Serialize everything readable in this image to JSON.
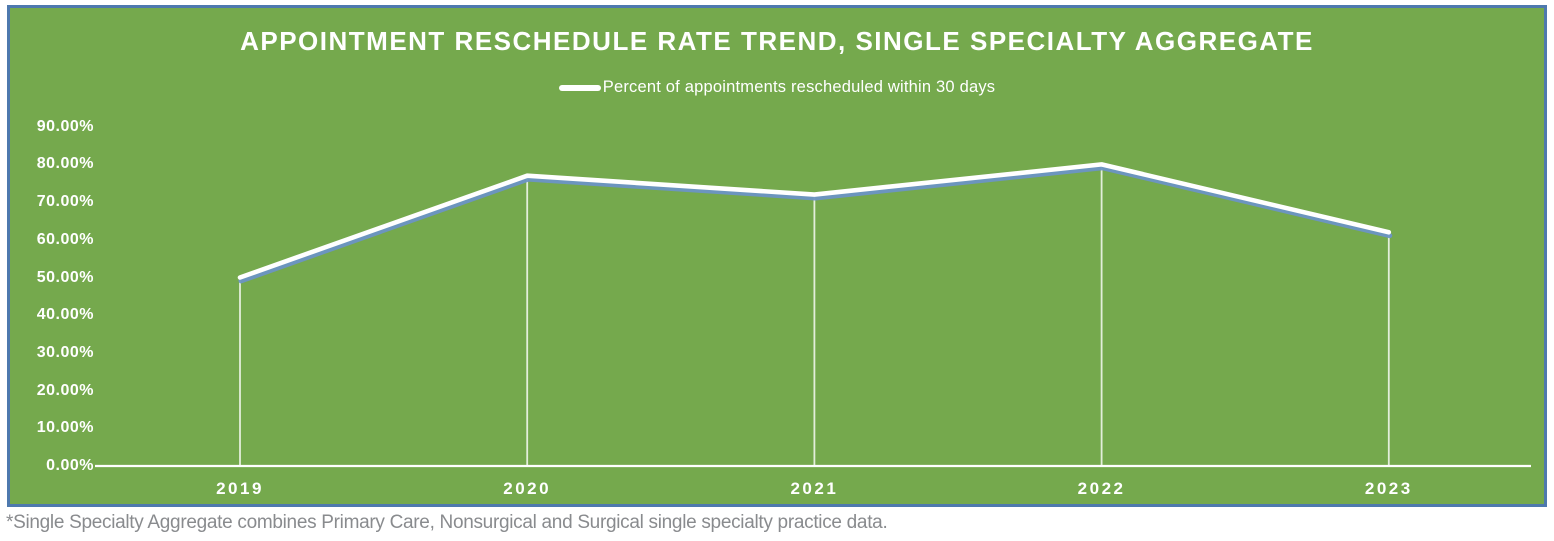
{
  "chart_data": {
    "type": "line",
    "title": "APPOINTMENT RESCHEDULE RATE TREND, SINGLE SPECIALTY AGGREGATE",
    "categories": [
      "2019",
      "2020",
      "2021",
      "2022",
      "2023"
    ],
    "series": [
      {
        "name": "Percent of appointments rescheduled within 30 days",
        "values": [
          50,
          77,
          72,
          80,
          62
        ]
      }
    ],
    "xlabel": "",
    "ylabel": "",
    "ylim": [
      0,
      90
    ],
    "ytick_labels": [
      "0.00%",
      "10.00%",
      "20.00%",
      "30.00%",
      "40.00%",
      "50.00%",
      "60.00%",
      "70.00%",
      "80.00%",
      "90.00%"
    ],
    "grid": "vertical-drop-lines-only",
    "legend_position": "top-center",
    "colors": {
      "panel_background": "#75a94d",
      "panel_border": "#4e79ae",
      "line": "#ffffff",
      "line_shadow": "#6b93c4",
      "axis": "#ffffff",
      "labels": "#ffffff",
      "footnote_text": "#898b8e"
    }
  },
  "footnote": "*Single Specialty Aggregate combines Primary Care, Nonsurgical and Surgical single specialty practice data."
}
